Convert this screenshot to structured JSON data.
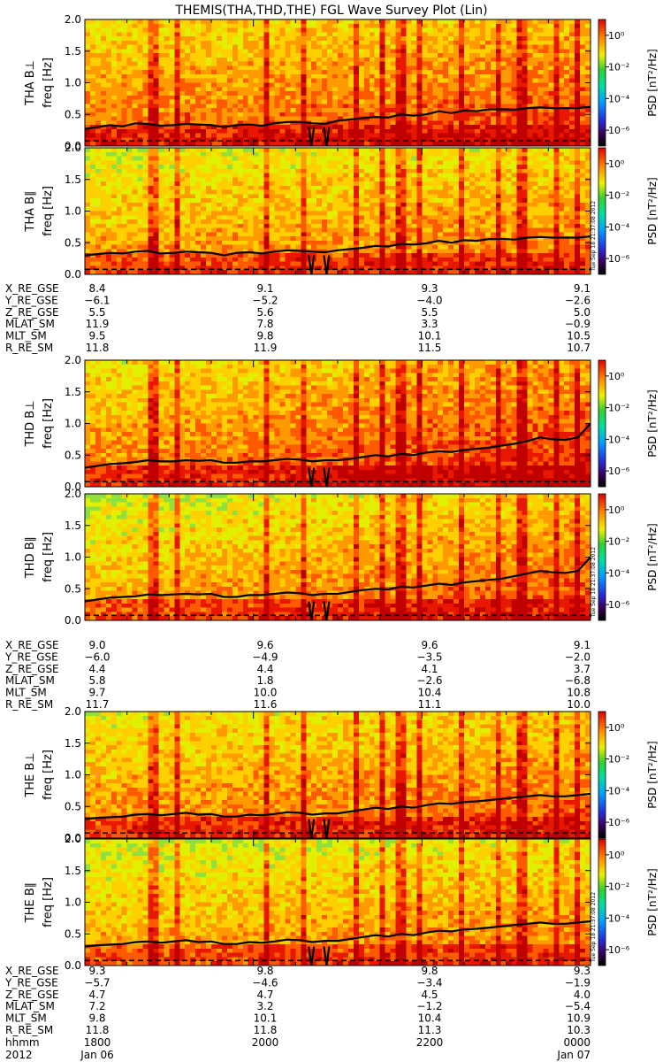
{
  "title": "THEMIS(THA,THD,THE) FGL Wave Survey Plot (Lin)",
  "chart_data": {
    "type": "heatmap",
    "title": "THEMIS(THA,THD,THE) FGL Wave Survey Plot (Lin)",
    "ylabel": "freq [Hz]",
    "ylim": [
      0,
      2.0
    ],
    "yticks": [
      "0.0",
      "0.5",
      "1.0",
      "1.5",
      "2.0"
    ],
    "colorbar": {
      "label": "PSD [nT²/Hz]",
      "ticks": [
        "10⁰",
        "10⁻²",
        "10⁻⁴",
        "10⁻⁶"
      ],
      "scale": "log",
      "range": [
        -7,
        1
      ]
    },
    "panels": [
      {
        "probe": "THA",
        "component": "B⊥",
        "label": "THA B⊥",
        "level": 0.95,
        "trace": [
          0.27,
          0.3,
          0.33,
          0.31,
          0.36,
          0.35,
          0.32,
          0.33,
          0.35,
          0.34,
          0.33,
          0.3,
          0.33,
          0.34,
          0.32,
          0.36,
          0.38,
          0.38,
          0.36,
          0.35,
          0.4,
          0.42,
          0.44,
          0.46,
          0.45,
          0.5,
          0.48,
          0.5,
          0.55,
          0.52,
          0.56,
          0.55,
          0.58,
          0.58,
          0.57,
          0.6,
          0.61,
          0.6,
          0.6,
          0.6,
          0.62
        ]
      },
      {
        "probe": "THA",
        "component": "B∥",
        "label": "THA B∥",
        "level": 0.55,
        "trace": [
          0.3,
          0.32,
          0.34,
          0.33,
          0.36,
          0.37,
          0.33,
          0.34,
          0.36,
          0.35,
          0.34,
          0.3,
          0.34,
          0.35,
          0.33,
          0.36,
          0.38,
          0.37,
          0.36,
          0.35,
          0.38,
          0.4,
          0.42,
          0.45,
          0.44,
          0.48,
          0.47,
          0.49,
          0.53,
          0.5,
          0.54,
          0.53,
          0.56,
          0.56,
          0.55,
          0.58,
          0.59,
          0.58,
          0.58,
          0.58,
          0.6
        ]
      },
      {
        "probe": "THD",
        "component": "B⊥",
        "label": "THD B⊥",
        "level": 0.85,
        "trace": [
          0.3,
          0.33,
          0.36,
          0.37,
          0.39,
          0.42,
          0.4,
          0.4,
          0.42,
          0.41,
          0.42,
          0.38,
          0.38,
          0.4,
          0.4,
          0.42,
          0.44,
          0.43,
          0.4,
          0.42,
          0.42,
          0.44,
          0.47,
          0.5,
          0.48,
          0.52,
          0.5,
          0.54,
          0.56,
          0.55,
          0.58,
          0.6,
          0.62,
          0.65,
          0.68,
          0.72,
          0.78,
          0.75,
          0.74,
          0.78,
          1.0
        ]
      },
      {
        "probe": "THD",
        "component": "B∥",
        "label": "THD B∥",
        "level": 0.4,
        "trace": [
          0.3,
          0.33,
          0.36,
          0.37,
          0.38,
          0.41,
          0.4,
          0.41,
          0.42,
          0.41,
          0.42,
          0.37,
          0.37,
          0.4,
          0.4,
          0.42,
          0.44,
          0.43,
          0.4,
          0.42,
          0.42,
          0.45,
          0.48,
          0.5,
          0.49,
          0.53,
          0.52,
          0.55,
          0.58,
          0.56,
          0.6,
          0.62,
          0.64,
          0.66,
          0.7,
          0.74,
          0.78,
          0.76,
          0.75,
          0.78,
          1.0
        ]
      },
      {
        "probe": "THE",
        "component": "B⊥",
        "label": "THE B⊥",
        "level": 0.75,
        "trace": [
          0.3,
          0.32,
          0.33,
          0.34,
          0.37,
          0.38,
          0.36,
          0.38,
          0.4,
          0.37,
          0.38,
          0.34,
          0.34,
          0.37,
          0.36,
          0.38,
          0.41,
          0.4,
          0.37,
          0.39,
          0.39,
          0.42,
          0.45,
          0.48,
          0.46,
          0.5,
          0.48,
          0.52,
          0.55,
          0.54,
          0.57,
          0.58,
          0.6,
          0.62,
          0.64,
          0.66,
          0.68,
          0.66,
          0.66,
          0.68,
          0.7
        ]
      },
      {
        "probe": "THE",
        "component": "B∥",
        "label": "THE B∥",
        "level": 0.45,
        "trace": [
          0.3,
          0.32,
          0.33,
          0.34,
          0.37,
          0.38,
          0.36,
          0.38,
          0.4,
          0.37,
          0.38,
          0.34,
          0.34,
          0.37,
          0.36,
          0.38,
          0.41,
          0.4,
          0.37,
          0.39,
          0.39,
          0.42,
          0.45,
          0.48,
          0.46,
          0.5,
          0.48,
          0.52,
          0.55,
          0.54,
          0.57,
          0.58,
          0.6,
          0.62,
          0.64,
          0.66,
          0.68,
          0.66,
          0.66,
          0.68,
          0.7
        ]
      }
    ],
    "ephemeris": [
      {
        "probe": "THA",
        "rows": [
          [
            "X_RE_GSE",
            "8.4",
            "9.1",
            "9.3",
            "9.1"
          ],
          [
            "Y_RE_GSE",
            "−6.1",
            "−5.2",
            "−4.0",
            "−2.6"
          ],
          [
            "Z_RE_GSE",
            "5.5",
            "5.6",
            "5.5",
            "5.0"
          ],
          [
            "MLAT_SM",
            "11.9",
            "7.8",
            "3.3",
            "−0.9"
          ],
          [
            "MLT_SM",
            "9.5",
            "9.8",
            "10.1",
            "10.5"
          ],
          [
            "R_RE_SM",
            "11.8",
            "11.9",
            "11.5",
            "10.7"
          ]
        ]
      },
      {
        "probe": "THD",
        "rows": [
          [
            "X_RE_GSE",
            "9.0",
            "9.6",
            "9.6",
            "9.1"
          ],
          [
            "Y_RE_GSE",
            "−6.0",
            "−4.9",
            "−3.5",
            "−2.0"
          ],
          [
            "Z_RE_GSE",
            "4.4",
            "4.4",
            "4.1",
            "3.7"
          ],
          [
            "MLAT_SM",
            "5.8",
            "1.8",
            "−2.6",
            "−6.8"
          ],
          [
            "MLT_SM",
            "9.7",
            "10.0",
            "10.4",
            "10.8"
          ],
          [
            "R_RE_SM",
            "11.7",
            "11.6",
            "11.1",
            "10.0"
          ]
        ]
      },
      {
        "probe": "THE",
        "rows": [
          [
            "X_RE_GSE",
            "9.3",
            "9.8",
            "9.8",
            "9.3"
          ],
          [
            "Y_RE_GSE",
            "−5.7",
            "−4.6",
            "−3.4",
            "−1.9"
          ],
          [
            "Z_RE_GSE",
            "4.7",
            "4.7",
            "4.5",
            "4.0"
          ],
          [
            "MLAT_SM",
            "7.2",
            "3.2",
            "−1.2",
            "−5.4"
          ],
          [
            "MLT_SM",
            "9.8",
            "10.1",
            "10.4",
            "10.9"
          ],
          [
            "R_RE_SM",
            "11.8",
            "11.8",
            "11.3",
            "10.3"
          ]
        ]
      }
    ],
    "time_axis": {
      "rows": [
        [
          "hhmm",
          "1800",
          "2000",
          "2200",
          "0000"
        ],
        [
          "2012",
          "Jan 06",
          "",
          "",
          "Jan 07"
        ]
      ]
    },
    "timestamp": "Tue Sep 18 21:37:08 2012"
  }
}
